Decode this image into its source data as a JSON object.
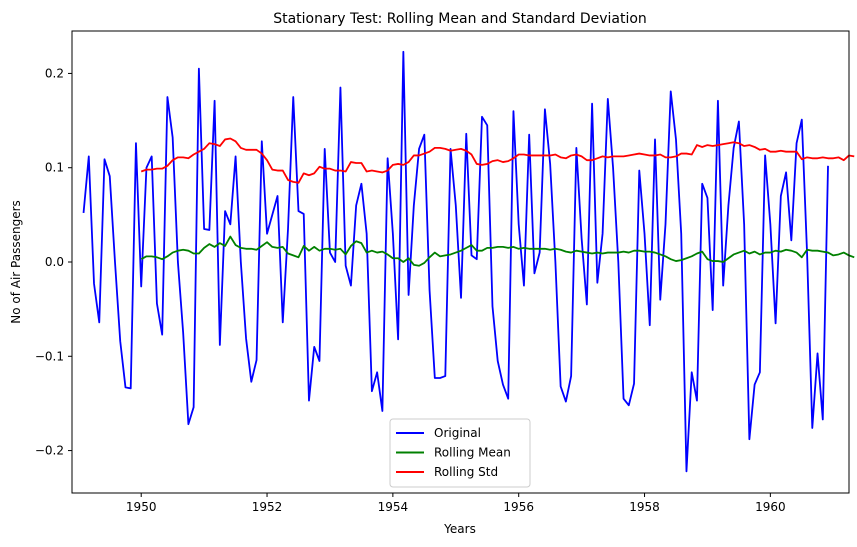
{
  "chart_data": {
    "type": "line",
    "title": "Stationary Test: Rolling Mean and Standard Deviation",
    "xlabel": "Years",
    "ylabel": "No of Air Passengers",
    "xlim": [
      1948.9,
      1961.25
    ],
    "ylim": [
      -0.245,
      0.245
    ],
    "xticks": [
      1950,
      1952,
      1954,
      1956,
      1958,
      1960
    ],
    "xtick_labels": [
      "1950",
      "1952",
      "1954",
      "1956",
      "1958",
      "1960"
    ],
    "yticks": [
      -0.2,
      -0.1,
      0.0,
      0.1,
      0.2
    ],
    "ytick_labels": [
      "−0.2",
      "−0.1",
      "0.0",
      "0.1",
      "0.2"
    ],
    "legend_position": "bottom-center",
    "x_start": 1949.0833,
    "x_step": 0.083333,
    "series": [
      {
        "name": "Original",
        "color": "#0000ff",
        "start_index": 0,
        "values": [
          0.052,
          0.112,
          -0.023,
          -0.064,
          0.109,
          0.091,
          0.0,
          -0.084,
          -0.133,
          -0.134,
          0.126,
          -0.026,
          0.1,
          0.112,
          -0.044,
          -0.077,
          0.175,
          0.132,
          0.0,
          -0.075,
          -0.172,
          -0.154,
          0.205,
          0.035,
          0.034,
          0.171,
          -0.088,
          0.054,
          0.04,
          0.112,
          0.0,
          -0.081,
          -0.127,
          -0.104,
          0.128,
          0.03,
          0.05,
          0.07,
          -0.064,
          0.035,
          0.175,
          0.054,
          0.051,
          -0.147,
          -0.09,
          -0.105,
          0.12,
          0.01,
          0.0,
          0.185,
          -0.004,
          -0.025,
          0.06,
          0.083,
          0.03,
          -0.137,
          -0.117,
          -0.158,
          0.11,
          0.03,
          -0.082,
          0.223,
          -0.035,
          0.06,
          0.12,
          0.135,
          -0.03,
          -0.123,
          -0.123,
          -0.121,
          0.12,
          0.06,
          -0.038,
          0.136,
          0.007,
          0.003,
          0.154,
          0.145,
          -0.047,
          -0.105,
          -0.13,
          -0.145,
          0.16,
          0.04,
          -0.025,
          0.135,
          -0.012,
          0.01,
          0.162,
          0.104,
          0.0,
          -0.132,
          -0.148,
          -0.121,
          0.121,
          0.025,
          -0.045,
          0.168,
          -0.022,
          0.03,
          0.173,
          0.1,
          0.0,
          -0.145,
          -0.152,
          -0.129,
          0.097,
          0.03,
          -0.067,
          0.13,
          -0.04,
          0.04,
          0.181,
          0.13,
          0.03,
          -0.222,
          -0.117,
          -0.147,
          0.083,
          0.068,
          -0.051,
          0.171,
          -0.025,
          0.06,
          0.121,
          0.149,
          0.04,
          -0.188,
          -0.13,
          -0.117,
          0.113,
          0.04,
          -0.065,
          0.07,
          0.095,
          0.023,
          0.126,
          0.151,
          0.01,
          -0.176,
          -0.097,
          -0.167,
          0.102
        ]
      },
      {
        "name": "Rolling Mean",
        "color": "#008000",
        "start_index": 11,
        "values": [
          0.003,
          0.006,
          0.006,
          0.005,
          0.003,
          0.006,
          0.01,
          0.012,
          0.013,
          0.012,
          0.009,
          0.009,
          0.015,
          0.019,
          0.016,
          0.02,
          0.017,
          0.027,
          0.018,
          0.015,
          0.014,
          0.014,
          0.013,
          0.017,
          0.021,
          0.016,
          0.015,
          0.016,
          0.009,
          0.007,
          0.005,
          0.017,
          0.012,
          0.016,
          0.012,
          0.014,
          0.014,
          0.013,
          0.014,
          0.008,
          0.017,
          0.022,
          0.02,
          0.01,
          0.012,
          0.01,
          0.011,
          0.008,
          0.004,
          0.004,
          0.0,
          0.004,
          -0.003,
          -0.004,
          -0.001,
          0.005,
          0.01,
          0.006,
          0.007,
          0.008,
          0.01,
          0.012,
          0.015,
          0.018,
          0.012,
          0.012,
          0.015,
          0.015,
          0.016,
          0.016,
          0.015,
          0.016,
          0.014,
          0.015,
          0.014,
          0.014,
          0.014,
          0.014,
          0.013,
          0.014,
          0.013,
          0.011,
          0.01,
          0.012,
          0.011,
          0.01,
          0.009,
          0.01,
          0.009,
          0.01,
          0.01,
          0.01,
          0.011,
          0.01,
          0.012,
          0.012,
          0.011,
          0.011,
          0.01,
          0.008,
          0.006,
          0.003,
          0.001,
          0.002,
          0.004,
          0.006,
          0.009,
          0.011,
          0.003,
          0.001,
          0.001,
          0.0,
          0.004,
          0.008,
          0.01,
          0.012,
          0.009,
          0.011,
          0.008,
          0.01,
          0.01,
          0.012,
          0.011,
          0.013,
          0.012,
          0.01,
          0.005,
          0.013,
          0.012,
          0.012,
          0.011,
          0.01,
          0.007,
          0.008,
          0.01,
          0.007,
          0.005
        ]
      },
      {
        "name": "Rolling Std",
        "color": "#ff0000",
        "start_index": 11,
        "values": [
          0.096,
          0.098,
          0.098,
          0.099,
          0.099,
          0.102,
          0.108,
          0.111,
          0.111,
          0.11,
          0.114,
          0.117,
          0.12,
          0.126,
          0.125,
          0.123,
          0.13,
          0.131,
          0.128,
          0.121,
          0.119,
          0.119,
          0.119,
          0.115,
          0.108,
          0.098,
          0.097,
          0.097,
          0.087,
          0.085,
          0.084,
          0.094,
          0.092,
          0.094,
          0.101,
          0.099,
          0.099,
          0.097,
          0.097,
          0.096,
          0.106,
          0.105,
          0.105,
          0.096,
          0.097,
          0.096,
          0.095,
          0.097,
          0.103,
          0.104,
          0.103,
          0.106,
          0.113,
          0.113,
          0.115,
          0.117,
          0.121,
          0.121,
          0.12,
          0.118,
          0.119,
          0.12,
          0.118,
          0.114,
          0.104,
          0.103,
          0.104,
          0.107,
          0.108,
          0.106,
          0.107,
          0.11,
          0.114,
          0.114,
          0.113,
          0.113,
          0.113,
          0.113,
          0.113,
          0.114,
          0.111,
          0.11,
          0.113,
          0.114,
          0.112,
          0.108,
          0.108,
          0.11,
          0.112,
          0.111,
          0.112,
          0.112,
          0.112,
          0.113,
          0.114,
          0.115,
          0.114,
          0.113,
          0.113,
          0.114,
          0.111,
          0.111,
          0.112,
          0.115,
          0.115,
          0.114,
          0.124,
          0.122,
          0.124,
          0.123,
          0.124,
          0.125,
          0.126,
          0.127,
          0.126,
          0.123,
          0.124,
          0.122,
          0.119,
          0.12,
          0.117,
          0.117,
          0.118,
          0.117,
          0.117,
          0.117,
          0.109,
          0.111,
          0.11,
          0.11,
          0.111,
          0.11,
          0.11,
          0.111,
          0.108,
          0.113,
          0.112
        ]
      }
    ]
  }
}
